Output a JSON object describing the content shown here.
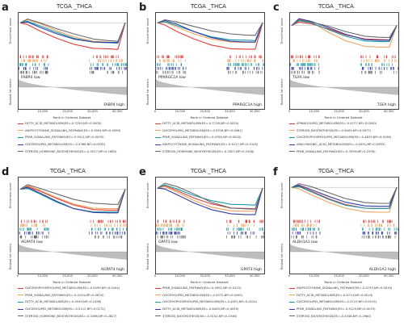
{
  "series_colors": [
    "#e03b3b",
    "#f0a35e",
    "#1a98a5",
    "#2f3fa6",
    "#6a6a6a"
  ],
  "axis": {
    "y_es": "Enrichment score",
    "y_rank": "Ranked list metric",
    "x": "Rank in Ordered Dataset",
    "x_ticks": [
      "0",
      "10,000",
      "20,000",
      "30,000",
      "40,000"
    ]
  },
  "panels": [
    {
      "label": "a",
      "title": "TCGA _THCA",
      "low": "FABP4 low",
      "high": "FABP4 high",
      "legend": [
        "FATTY_ACID_METABOLISM(ES=-0.7250,NP=0.0000)",
        "ADIPOCYTOKINE_SIGNALING_PATHWAY(ES=-0.5594,NP=0.0059)",
        "PPAR_SIGNALING_PATHWAY(ES=-0.5511,NP=0.0039)",
        "GLYCEROLIPID_METABOLISM(ES=-0.5366,NP=0.0039)",
        "STEROID_HORMONE_BIOSYNTHESIS(ES=-0.5017,NP=0.1663)"
      ],
      "chart_data": {
        "type": "line",
        "ylabel": "Enrichment score",
        "xlabel": "Rank in Ordered Dataset",
        "series": [
          {
            "name": "FATTY_ACID_METABOLISM",
            "x": [
              0,
              3000,
              8000,
              15000,
              22000,
              30000,
              36000,
              40000,
              43000
            ],
            "y": [
              0.0,
              -0.05,
              -0.22,
              -0.42,
              -0.58,
              -0.69,
              -0.7,
              -0.72,
              0.0
            ]
          },
          {
            "name": "ADIPOCYTOKINE_SIGNALING_PATHWAY",
            "x": [
              0,
              3000,
              8000,
              15000,
              22000,
              30000,
              36000,
              40000,
              43000
            ],
            "y": [
              0.0,
              0.08,
              -0.02,
              -0.22,
              -0.38,
              -0.5,
              -0.52,
              -0.54,
              0.0
            ]
          },
          {
            "name": "PPAR_SIGNALING_PATHWAY",
            "x": [
              0,
              3000,
              8000,
              15000,
              22000,
              30000,
              36000,
              40000,
              43000
            ],
            "y": [
              0.0,
              0.04,
              -0.08,
              -0.26,
              -0.42,
              -0.52,
              -0.54,
              -0.55,
              0.0
            ]
          },
          {
            "name": "GLYCEROLIPID_METABOLISM",
            "x": [
              0,
              3000,
              8000,
              15000,
              22000,
              30000,
              36000,
              40000,
              43000
            ],
            "y": [
              0.0,
              0.02,
              -0.12,
              -0.3,
              -0.44,
              -0.52,
              -0.53,
              -0.53,
              0.0
            ]
          },
          {
            "name": "STEROID_HORMONE_BIOSYNTHESIS",
            "x": [
              0,
              3000,
              8000,
              15000,
              22000,
              30000,
              36000,
              40000,
              43000
            ],
            "y": [
              0.0,
              0.1,
              0.0,
              -0.16,
              -0.3,
              -0.44,
              -0.48,
              -0.5,
              0.0
            ]
          }
        ],
        "xlim": [
          0,
          43000
        ],
        "ylim": [
          -0.8,
          0.2
        ]
      }
    },
    {
      "label": "b",
      "title": "TCGA _THCA",
      "low": "PPARGC1A low",
      "high": "PPARGC1A high",
      "legend": [
        "FATTY_ACID_METABOLISM(ES=-0.7126,NP=0.0020)",
        "GLYCEROLIPID_METABOLISM(ES=-0.5318,NP=0.0081)",
        "PPAR_SIGNALING_PATHWAY(ES=-0.4765,NP=0.0020)",
        "ADIPOCYTOKINE_SIGNALING_PATHWAY(ES=-0.5217,NP=0.0145)",
        "STEROID_HORMONE_BIOSYNTHESIS(ES=-0.3407,NP=0.1936)"
      ],
      "chart_data": {
        "type": "line",
        "ylabel": "Enrichment score",
        "xlabel": "Rank in Ordered Dataset",
        "series": [
          {
            "name": "FATTY_ACID_METABOLISM",
            "x": [
              0,
              3000,
              8000,
              15000,
              22000,
              30000,
              36000,
              40000,
              43000
            ],
            "y": [
              0.0,
              -0.06,
              -0.24,
              -0.44,
              -0.6,
              -0.7,
              -0.71,
              -0.71,
              0.0
            ]
          },
          {
            "name": "GLYCEROLIPID_METABOLISM",
            "x": [
              0,
              3000,
              8000,
              15000,
              22000,
              30000,
              36000,
              40000,
              43000
            ],
            "y": [
              0.0,
              0.02,
              -0.12,
              -0.3,
              -0.44,
              -0.52,
              -0.53,
              -0.53,
              0.0
            ]
          },
          {
            "name": "PPAR_SIGNALING_PATHWAY",
            "x": [
              0,
              3000,
              8000,
              15000,
              22000,
              30000,
              36000,
              40000,
              43000
            ],
            "y": [
              0.0,
              0.03,
              -0.08,
              -0.24,
              -0.38,
              -0.46,
              -0.47,
              -0.48,
              0.0
            ]
          },
          {
            "name": "ADIPOCYTOKINE_SIGNALING_PATHWAY",
            "x": [
              0,
              3000,
              8000,
              15000,
              22000,
              30000,
              36000,
              40000,
              43000
            ],
            "y": [
              0.0,
              0.06,
              -0.04,
              -0.24,
              -0.4,
              -0.5,
              -0.52,
              -0.52,
              0.0
            ]
          },
          {
            "name": "STEROID_HORMONE_BIOSYNTHESIS",
            "x": [
              0,
              3000,
              8000,
              15000,
              22000,
              30000,
              36000,
              40000,
              43000
            ],
            "y": [
              0.0,
              0.08,
              0.02,
              -0.1,
              -0.22,
              -0.3,
              -0.33,
              -0.34,
              0.0
            ]
          }
        ],
        "xlim": [
          0,
          43000
        ],
        "ylim": [
          -0.8,
          0.2
        ]
      }
    },
    {
      "label": "c",
      "title": "TCGA _THCA",
      "low": "TGFA low",
      "high": "TGFA high",
      "legend": [
        "SPHINGOLIPID_METABOLISM(ES=-0.4277,NP=0.0000)",
        "STEROID_BIOSYNTHESIS(ES=-0.6409,NP=0.0077)",
        "GLYCEROPHOSPHOLIPID_METABOLISM(ES=-0.4833,NP=0.0196)",
        "ARACHIDONIC_ACID_METABOLISM(ES=-0.4391,NP=0.0559)",
        "PPAR_SIGNALING_PATHWAY(ES=-0.3599,NP=0.2390)"
      ],
      "chart_data": {
        "type": "line",
        "ylabel": "Enrichment score",
        "xlabel": "Rank in Ordered Dataset",
        "series": [
          {
            "name": "SPHINGOLIPID_METABOLISM",
            "x": [
              0,
              3000,
              8000,
              15000,
              22000,
              30000,
              36000,
              40000,
              43000
            ],
            "y": [
              0.0,
              0.1,
              0.05,
              -0.1,
              -0.28,
              -0.4,
              -0.42,
              -0.43,
              0.0
            ]
          },
          {
            "name": "STEROID_BIOSYNTHESIS",
            "x": [
              0,
              3000,
              8000,
              15000,
              22000,
              30000,
              36000,
              40000,
              43000
            ],
            "y": [
              0.0,
              0.18,
              0.1,
              -0.2,
              -0.45,
              -0.62,
              -0.64,
              -0.64,
              0.0
            ]
          },
          {
            "name": "GLYCEROPHOSPHOLIPID_METABOLISM",
            "x": [
              0,
              3000,
              8000,
              15000,
              22000,
              30000,
              36000,
              40000,
              43000
            ],
            "y": [
              0.0,
              0.14,
              0.08,
              -0.12,
              -0.32,
              -0.46,
              -0.48,
              -0.48,
              0.0
            ]
          },
          {
            "name": "ARACHIDONIC_ACID_METABOLISM",
            "x": [
              0,
              3000,
              8000,
              15000,
              22000,
              30000,
              36000,
              40000,
              43000
            ],
            "y": [
              0.0,
              0.2,
              0.12,
              -0.06,
              -0.26,
              -0.42,
              -0.44,
              -0.44,
              0.0
            ]
          },
          {
            "name": "PPAR_SIGNALING_PATHWAY",
            "x": [
              0,
              3000,
              8000,
              15000,
              22000,
              30000,
              36000,
              40000,
              43000
            ],
            "y": [
              0.0,
              0.16,
              0.1,
              -0.02,
              -0.18,
              -0.32,
              -0.35,
              -0.36,
              0.0
            ]
          }
        ],
        "xlim": [
          0,
          43000
        ],
        "ylim": [
          -0.8,
          0.3
        ]
      }
    },
    {
      "label": "d",
      "title": "TCGA _THCA",
      "low": "AGPAT4 low",
      "high": "AGPAT4 high",
      "legend": [
        "GLYCEROPHOSPHOLIPID_METABOLISM(ES=-0.4499,NP=0.0444)",
        "PPAR_SIGNALING_PATHWAY(ES=-0.4154,NP=0.0633)",
        "FATTY_ACID_METABOLISM(ES=-0.4949,NP=0.1458)",
        "GLYCEROLIPID_METABOLISM(ES=-0.5112,NP=0.0172)",
        "STEROID_HORMONE_BIOSYNTHESIS(ES=-0.3266,NP=0.2827)"
      ],
      "chart_data": {
        "type": "line",
        "ylabel": "Enrichment score",
        "xlabel": "Rank in Ordered Dataset",
        "series": [
          {
            "name": "GLYCEROPHOSPHOLIPID_METABOLISM",
            "x": [
              0,
              3000,
              8000,
              15000,
              22000,
              30000,
              36000,
              40000,
              43000
            ],
            "y": [
              0.0,
              0.06,
              -0.04,
              -0.2,
              -0.34,
              -0.44,
              -0.45,
              -0.45,
              0.0
            ]
          },
          {
            "name": "PPAR_SIGNALING_PATHWAY",
            "x": [
              0,
              3000,
              8000,
              15000,
              22000,
              30000,
              36000,
              40000,
              43000
            ],
            "y": [
              0.0,
              0.08,
              -0.02,
              -0.18,
              -0.32,
              -0.41,
              -0.42,
              -0.42,
              0.0
            ]
          },
          {
            "name": "FATTY_ACID_METABOLISM",
            "x": [
              0,
              3000,
              8000,
              15000,
              22000,
              30000,
              36000,
              40000,
              43000
            ],
            "y": [
              0.0,
              0.02,
              -0.1,
              -0.28,
              -0.42,
              -0.49,
              -0.49,
              -0.49,
              0.0
            ]
          },
          {
            "name": "GLYCEROLIPID_METABOLISM",
            "x": [
              0,
              3000,
              8000,
              15000,
              22000,
              30000,
              36000,
              40000,
              43000
            ],
            "y": [
              0.0,
              0.04,
              -0.08,
              -0.26,
              -0.42,
              -0.5,
              -0.51,
              -0.51,
              0.0
            ]
          },
          {
            "name": "STEROID_HORMONE_BIOSYNTHESIS",
            "x": [
              0,
              3000,
              8000,
              15000,
              22000,
              30000,
              36000,
              40000,
              43000
            ],
            "y": [
              0.0,
              0.1,
              0.02,
              -0.1,
              -0.22,
              -0.3,
              -0.32,
              -0.33,
              0.0
            ]
          }
        ],
        "xlim": [
          0,
          43000
        ],
        "ylim": [
          -0.6,
          0.2
        ]
      }
    },
    {
      "label": "e",
      "title": "TCGA _THCA",
      "low": "GPAT3 low",
      "high": "GPAT3 high",
      "legend": [
        "PPAR_SIGNALING_PATHWAY(ES=-0.4951,NP=0.0115)",
        "GLYCEROLIPID_METABOLISM(ES=-0.5572,NP=0.0000)",
        "GLYCEROPHOSPHOLIPID_METABOLISM(ES=-0.4053,NP=0.0224)",
        "FATTY_ACID_METABOLISM(ES=-0.6405,NP=0.0059)",
        "STEROID_BIOSYNTHESIS(ES=-0.5142,NP=0.1546)"
      ],
      "chart_data": {
        "type": "line",
        "ylabel": "Enrichment score",
        "xlabel": "Rank in Ordered Dataset",
        "series": [
          {
            "name": "PPAR_SIGNALING_PATHWAY",
            "x": [
              0,
              3000,
              8000,
              15000,
              22000,
              30000,
              36000,
              40000,
              43000
            ],
            "y": [
              0.0,
              0.06,
              -0.06,
              -0.24,
              -0.38,
              -0.48,
              -0.49,
              -0.5,
              0.0
            ]
          },
          {
            "name": "GLYCEROLIPID_METABOLISM",
            "x": [
              0,
              3000,
              8000,
              15000,
              22000,
              30000,
              36000,
              40000,
              43000
            ],
            "y": [
              0.0,
              0.04,
              -0.1,
              -0.3,
              -0.46,
              -0.55,
              -0.56,
              -0.56,
              0.0
            ]
          },
          {
            "name": "GLYCEROPHOSPHOLIPID_METABOLISM",
            "x": [
              0,
              3000,
              8000,
              15000,
              22000,
              30000,
              36000,
              40000,
              43000
            ],
            "y": [
              0.0,
              0.08,
              -0.02,
              -0.18,
              -0.3,
              -0.39,
              -0.4,
              -0.41,
              0.0
            ]
          },
          {
            "name": "FATTY_ACID_METABOLISM",
            "x": [
              0,
              3000,
              8000,
              15000,
              22000,
              30000,
              36000,
              40000,
              43000
            ],
            "y": [
              0.0,
              -0.02,
              -0.16,
              -0.36,
              -0.52,
              -0.62,
              -0.64,
              -0.64,
              0.0
            ]
          },
          {
            "name": "STEROID_BIOSYNTHESIS",
            "x": [
              0,
              3000,
              8000,
              15000,
              22000,
              30000,
              36000,
              40000,
              43000
            ],
            "y": [
              0.0,
              0.12,
              0.04,
              -0.14,
              -0.34,
              -0.48,
              -0.5,
              -0.51,
              0.0
            ]
          }
        ],
        "xlim": [
          0,
          43000
        ],
        "ylim": [
          -0.7,
          0.2
        ]
      }
    },
    {
      "label": "f",
      "title": "TCGA _THCA",
      "low": "ALDH1A1 low",
      "high": "ALDH1A1 high",
      "legend": [
        "ADIPOCYTOKINE_SIGNALING_PATHWAY(ES=-0.5733,NP=0.0019)",
        "FATTY_ACID_METABOLISM(ES=-0.6714,NP=0.0019)",
        "GLYCEROLIPID_METABOLISM(ES=-0.5719,NP=0.0019)",
        "PPAR_SIGNALING_PATHWAY(ES=-0.5129,NP=0.0019)",
        "STEROID_BIOSYNTHESIS(ES=-0.4348,NP=0.2980)"
      ],
      "chart_data": {
        "type": "line",
        "ylabel": "Enrichment score",
        "xlabel": "Rank in Ordered Dataset",
        "series": [
          {
            "name": "ADIPOCYTOKINE_SIGNALING_PATHWAY",
            "x": [
              0,
              3000,
              8000,
              15000,
              22000,
              30000,
              36000,
              40000,
              43000
            ],
            "y": [
              0.0,
              0.04,
              -0.1,
              -0.3,
              -0.46,
              -0.56,
              -0.57,
              -0.57,
              0.0
            ]
          },
          {
            "name": "FATTY_ACID_METABOLISM",
            "x": [
              0,
              3000,
              8000,
              15000,
              22000,
              30000,
              36000,
              40000,
              43000
            ],
            "y": [
              0.0,
              -0.04,
              -0.2,
              -0.4,
              -0.56,
              -0.66,
              -0.67,
              -0.67,
              0.0
            ]
          },
          {
            "name": "GLYCEROLIPID_METABOLISM",
            "x": [
              0,
              3000,
              8000,
              15000,
              22000,
              30000,
              36000,
              40000,
              43000
            ],
            "y": [
              0.0,
              0.02,
              -0.12,
              -0.32,
              -0.48,
              -0.56,
              -0.57,
              -0.57,
              0.0
            ]
          },
          {
            "name": "PPAR_SIGNALING_PATHWAY",
            "x": [
              0,
              3000,
              8000,
              15000,
              22000,
              30000,
              36000,
              40000,
              43000
            ],
            "y": [
              0.0,
              0.06,
              -0.06,
              -0.24,
              -0.4,
              -0.5,
              -0.51,
              -0.51,
              0.0
            ]
          },
          {
            "name": "STEROID_BIOSYNTHESIS",
            "x": [
              0,
              3000,
              8000,
              15000,
              22000,
              30000,
              36000,
              40000,
              43000
            ],
            "y": [
              0.0,
              0.1,
              0.02,
              -0.14,
              -0.3,
              -0.41,
              -0.43,
              -0.43,
              0.0
            ]
          }
        ],
        "xlim": [
          0,
          43000
        ],
        "ylim": [
          -0.8,
          0.2
        ]
      }
    }
  ]
}
